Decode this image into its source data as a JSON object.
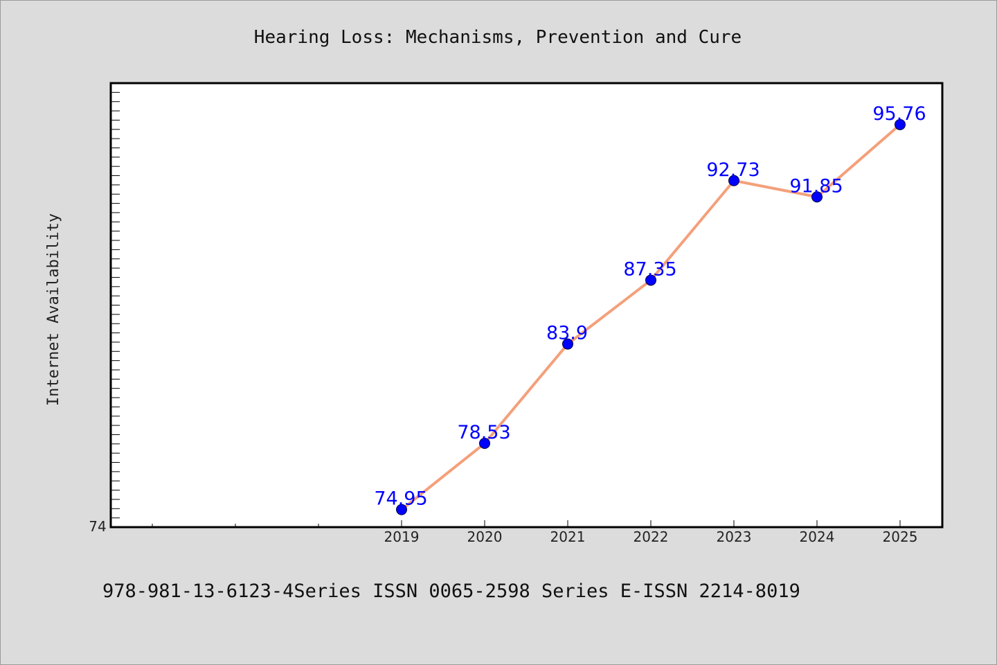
{
  "chart_data": {
    "type": "line",
    "title": "Hearing Loss: Mechanisms, Prevention and Cure",
    "xlabel": "",
    "ylabel": "Internet Availability",
    "categories": [
      "2019",
      "2020",
      "2021",
      "2022",
      "2023",
      "2024",
      "2025"
    ],
    "series": [
      {
        "values": [
          74.95,
          78.53,
          83.9,
          87.35,
          92.73,
          91.85,
          95.76
        ],
        "labels": [
          "74.95",
          "78.53",
          "83.9",
          "87.35",
          "92.73",
          "91.85",
          "95.76"
        ],
        "line_color": "#f4a07a",
        "marker_color": "#0000ff"
      }
    ],
    "ylim": [
      74,
      98
    ],
    "y_tick_labels": [
      "74"
    ],
    "grid": false,
    "legend": "none"
  },
  "footer": "978-981-13-6123-4Series ISSN 0065-2598 Series E-ISSN 2214-8019"
}
